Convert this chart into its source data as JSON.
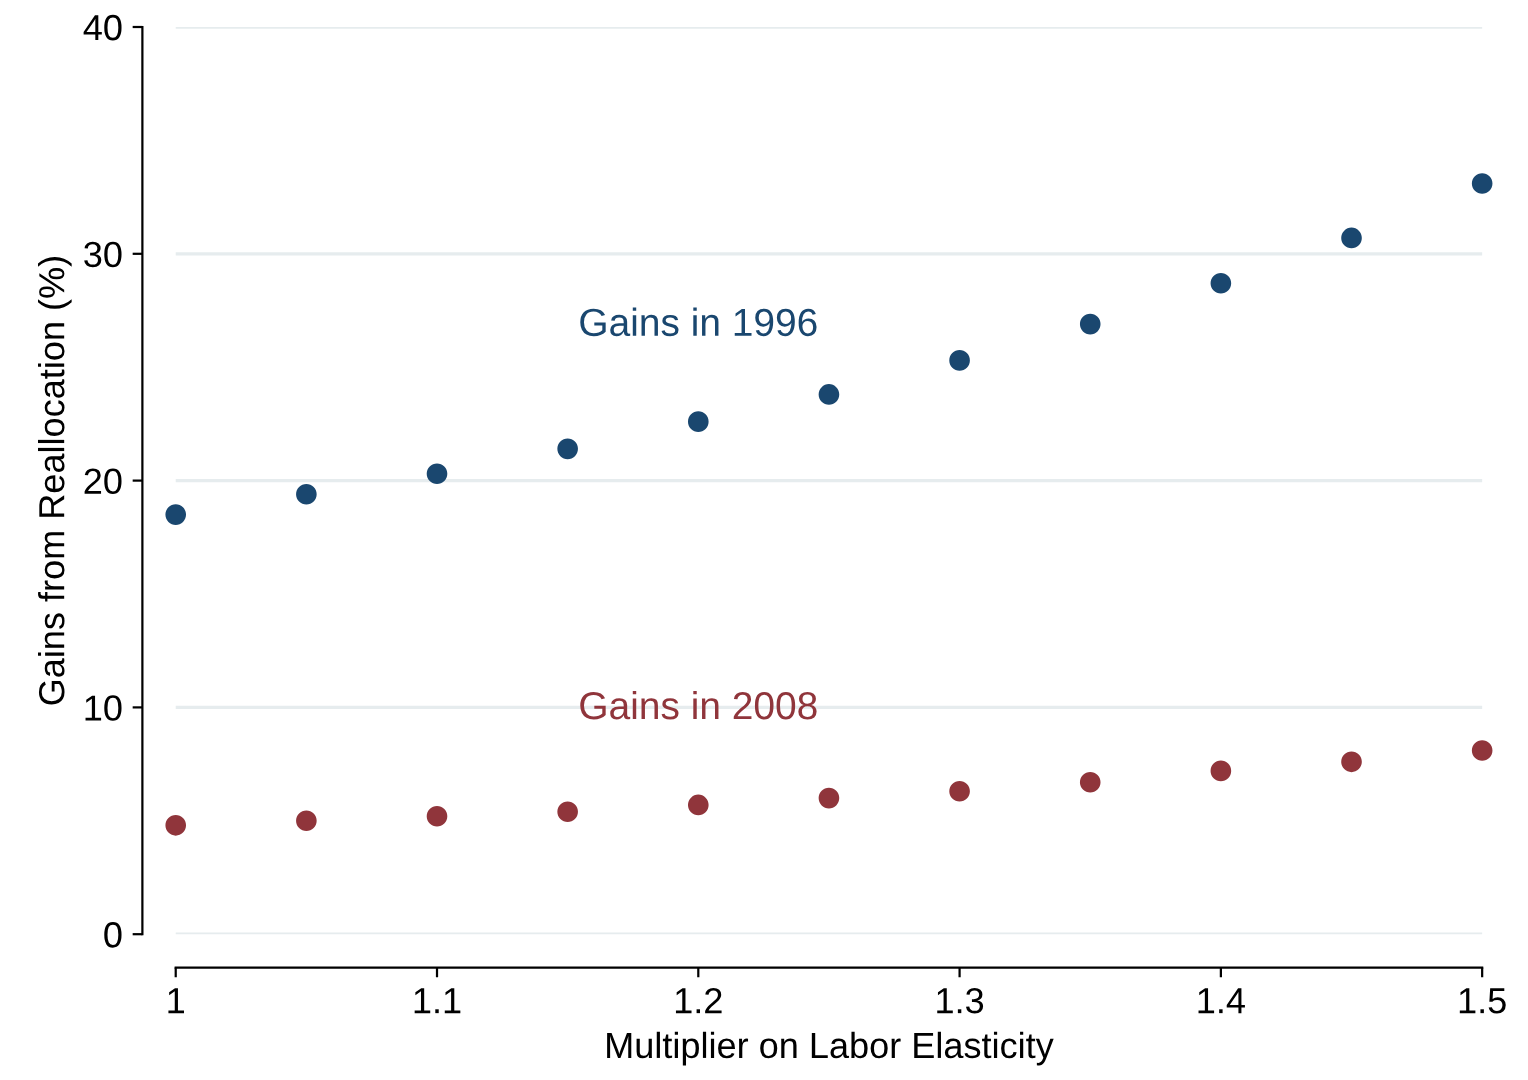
{
  "chart_data": {
    "type": "scatter",
    "xlabel": "Multiplier on Labor Elasticity",
    "ylabel": "Gains from Reallocation (%)",
    "x": [
      1,
      1.05,
      1.1,
      1.15,
      1.2,
      1.25,
      1.3,
      1.35,
      1.4,
      1.45,
      1.5
    ],
    "series": [
      {
        "name": "Gains in 1996",
        "color": "#1a476f",
        "values": [
          18.5,
          19.4,
          20.3,
          21.4,
          22.6,
          23.8,
          25.3,
          26.9,
          28.7,
          30.7,
          33.1
        ]
      },
      {
        "name": "Gains in 2008",
        "color": "#90353b",
        "values": [
          4.8,
          5.0,
          5.2,
          5.4,
          5.7,
          6.0,
          6.3,
          6.7,
          7.2,
          7.6,
          8.1
        ]
      }
    ],
    "xlim": [
      1,
      1.5
    ],
    "xticks": [
      1,
      1.1,
      1.2,
      1.3,
      1.4,
      1.5
    ],
    "ylim": [
      0,
      40
    ],
    "yticks": [
      0,
      10,
      20,
      30,
      40
    ],
    "grid": "y",
    "marker": "circle",
    "legend": false
  }
}
